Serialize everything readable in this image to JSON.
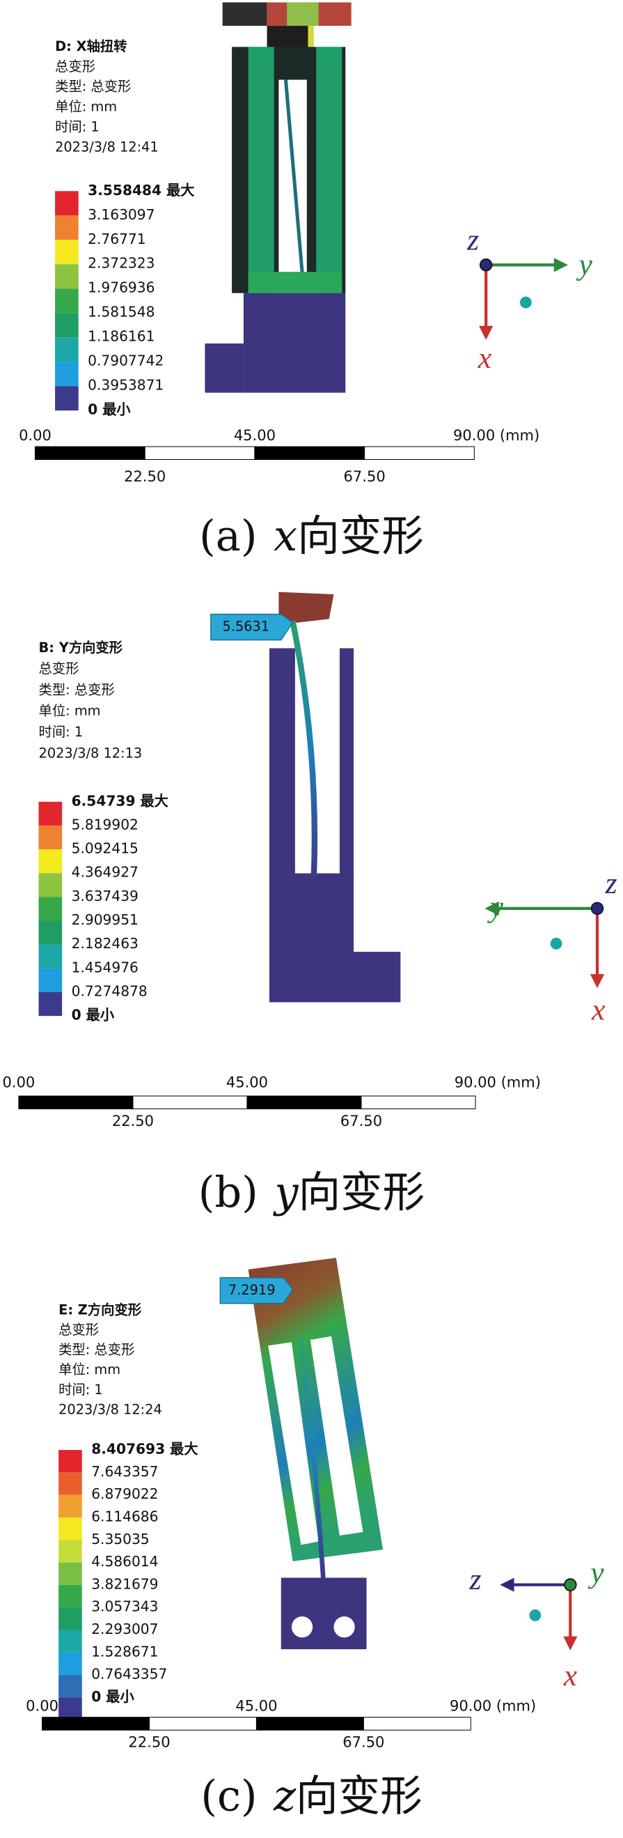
{
  "panels": [
    {
      "title": "D: X轴扭转",
      "info": [
        "总变形",
        "类型: 总变形",
        "单位: mm",
        "时间: 1",
        "2023/3/8 12:41"
      ],
      "legend": {
        "labels": [
          "3.558484 最大",
          "3.163097",
          "2.76771",
          "2.372323",
          "1.976936",
          "1.581548",
          "1.186161",
          "0.7907742",
          "0.3953871",
          "0 最小"
        ],
        "colors": [
          "#e3262b",
          "#ef8230",
          "#f3e91e",
          "#8cc440",
          "#36a84a",
          "#1f9e63",
          "#1ba8a6",
          "#1e9ede",
          "#3c3a8c"
        ]
      },
      "scale": {
        "top": [
          "0.00",
          "45.00",
          "90.00 (mm)"
        ],
        "bottom": [
          "22.50",
          "67.50"
        ]
      },
      "triad": {
        "x": "x",
        "y": "y",
        "z": "z"
      },
      "caption": {
        "label": "(a)",
        "axis": "x",
        "text": "向变形"
      }
    },
    {
      "title": "B: Y方向变形",
      "info": [
        "总变形",
        "类型: 总变形",
        "单位: mm",
        "时间: 1",
        "2023/3/8 12:13"
      ],
      "legend": {
        "labels": [
          "6.54739 最大",
          "5.819902",
          "5.092415",
          "4.364927",
          "3.637439",
          "2.909951",
          "2.182463",
          "1.454976",
          "0.7274878",
          "0 最小"
        ],
        "colors": [
          "#e3262b",
          "#ef8230",
          "#f3e91e",
          "#8cc440",
          "#36a84a",
          "#1f9e63",
          "#1ba8a6",
          "#1e9ede",
          "#3c3a8c"
        ]
      },
      "probe": "5.5631",
      "scale": {
        "top": [
          "0.00",
          "45.00",
          "90.00 (mm)"
        ],
        "bottom": [
          "22.50",
          "67.50"
        ]
      },
      "triad": {
        "x": "x",
        "y": "y",
        "z": "z"
      },
      "caption": {
        "label": "(b)",
        "axis": "y",
        "text": "向变形"
      }
    },
    {
      "title": "E: Z方向变形",
      "info": [
        "总变形",
        "类型: 总变形",
        "单位: mm",
        "时间: 1",
        "2023/3/8 12:24"
      ],
      "legend": {
        "labels": [
          "8.407693 最大",
          "7.643357",
          "6.879022",
          "6.114686",
          "5.35035",
          "4.586014",
          "3.821679",
          "3.057343",
          "2.293007",
          "1.528671",
          "0.7643357",
          "0 最小"
        ],
        "colors": [
          "#e3262b",
          "#ec5f2c",
          "#f0a030",
          "#f3e91e",
          "#c4dc3a",
          "#78bf44",
          "#36a84a",
          "#1f9e63",
          "#1ba8a6",
          "#1e9ede",
          "#2f6db5",
          "#3c3a8c"
        ]
      },
      "probe": "7.2919",
      "scale": {
        "top": [
          "0.00",
          "45.00",
          "90.00 (mm)"
        ],
        "bottom": [
          "22.50",
          "67.50"
        ]
      },
      "triad": {
        "x": "x",
        "y": "y",
        "z": "z"
      },
      "caption": {
        "label": "(c)",
        "axis": "z",
        "text": "向变形"
      }
    }
  ]
}
